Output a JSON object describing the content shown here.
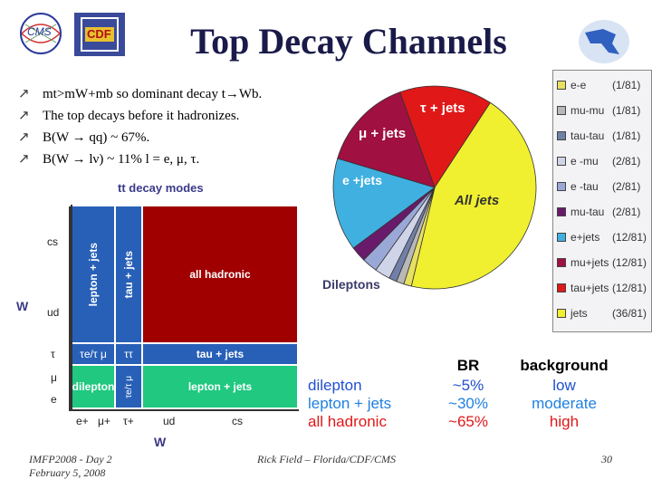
{
  "slide": {
    "title": "Top Decay Channels",
    "bullets": [
      "mt>mW+mb so dominant decay t→Wb.",
      "The top decays before it hadronizes.",
      "B(W → qq) ~ 67%.",
      "B(W → lν) ~ 11% l = e, μ, τ."
    ],
    "logos": {
      "cms": "CMS",
      "cdf": "CDF"
    },
    "footer": {
      "left_line1": "IMFP2008 - Day 2",
      "left_line2": "February 5, 2008",
      "center": "Rick Field – Florida/CDF/CMS",
      "page": "30"
    }
  },
  "grid": {
    "title": "tt decay modes",
    "y_axis_label": "W",
    "x_axis_label": "W",
    "y_labels": [
      "cs",
      "ud",
      "τ",
      "μ",
      "e"
    ],
    "x_labels": [
      "e+",
      "μ+",
      "τ+",
      "ud",
      "cs"
    ],
    "cells": {
      "lepton_jets_vertical": "lepton + jets",
      "tau_jets_vertical": "tau + jets",
      "all_hadronic": "all hadronic",
      "te_tm": "τe/τ μ",
      "tt": "ττ",
      "tau_jets": "tau + jets",
      "dilepton": "dilepton",
      "te_tm_small": "τe/τ μ",
      "lepton_jets": "lepton + jets"
    },
    "colors": {
      "red": "#a00000",
      "blue": "#2860b8",
      "green": "#20c880",
      "axis": "#333333"
    }
  },
  "chart_data": {
    "type": "pie",
    "categories": [
      "e-e",
      "mu-mu",
      "tau-tau",
      "e -mu",
      "e -tau",
      "mu-tau",
      "e+jets",
      "mu+jets",
      "tau+jets",
      "jets"
    ],
    "values": [
      1,
      1,
      1,
      2,
      2,
      2,
      12,
      12,
      12,
      36
    ],
    "value_labels": [
      "(1/81)",
      "(1/81)",
      "(1/81)",
      "(2/81)",
      "(2/81)",
      "(2/81)",
      "(12/81)",
      "(12/81)",
      "(12/81)",
      "(36/81)"
    ],
    "colors": [
      "#e8e060",
      "#b8b8b8",
      "#7080a8",
      "#cfd4e8",
      "#9aa8d8",
      "#6a1a6a",
      "#40b0e0",
      "#a01040",
      "#e01818",
      "#f0f030"
    ],
    "annotations": [
      "τ + jets",
      "μ + jets",
      "e +jets",
      "All jets",
      "Dileptons"
    ],
    "legend_position": "right"
  },
  "br_table": {
    "headers": [
      "BR",
      "background"
    ],
    "rows": [
      {
        "name": "dilepton",
        "br": "~5%",
        "background": "low",
        "color": "#2050d0"
      },
      {
        "name": "lepton + jets",
        "br": "~30%",
        "background": "moderate",
        "color": "#2080e0"
      },
      {
        "name": "all hadronic",
        "br": "~65%",
        "background": "high",
        "color": "#e01818"
      }
    ]
  }
}
